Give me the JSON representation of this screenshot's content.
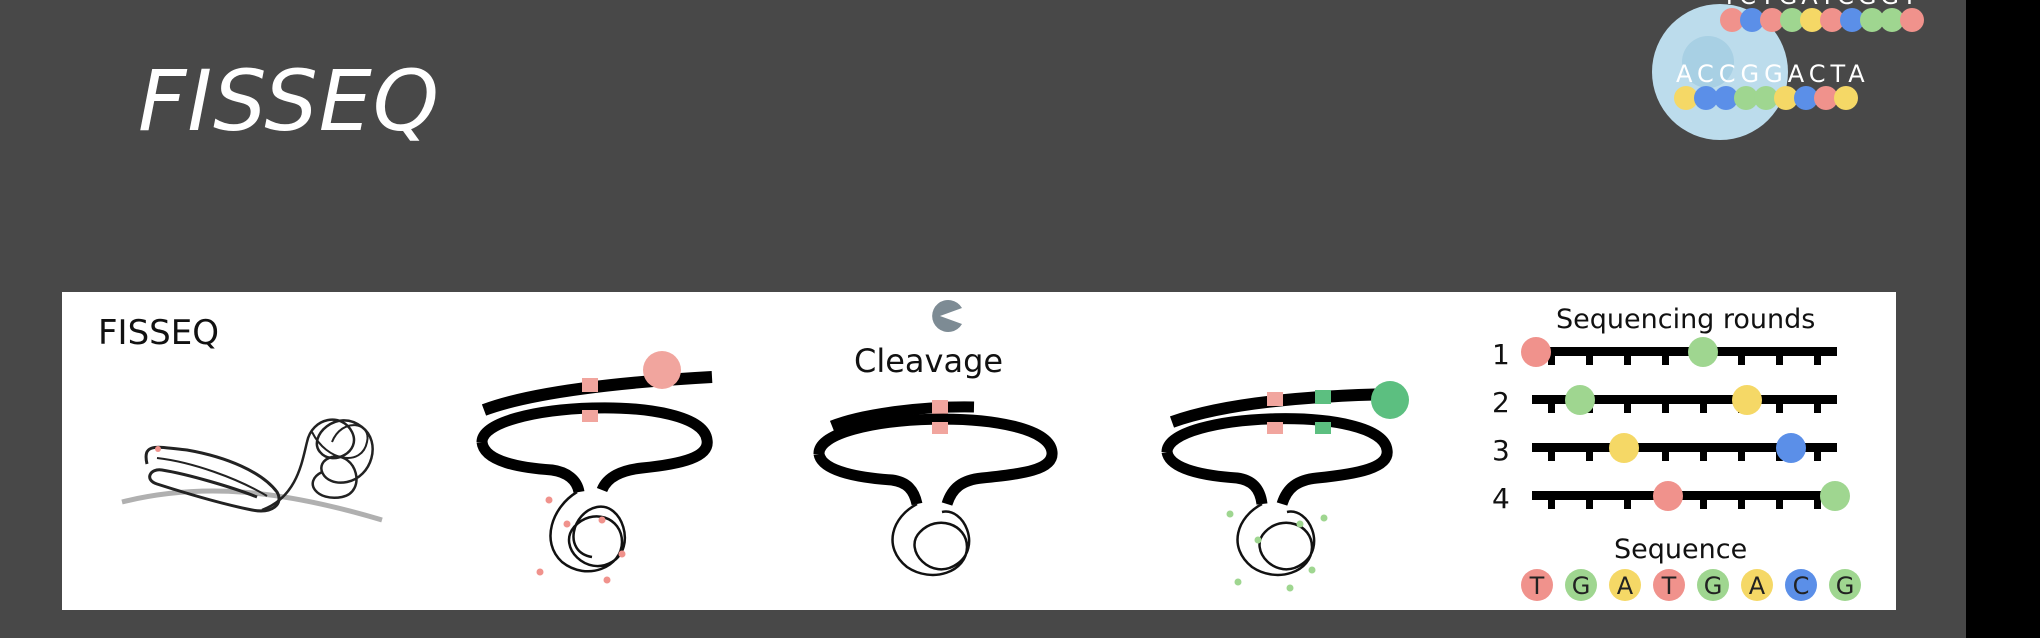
{
  "slide": {
    "title": "FISSEQ"
  },
  "logo": {
    "top_sequence": "TCTGATCGGT",
    "bottom_sequence": "ACCGGACTA"
  },
  "panel": {
    "label": "FISSEQ",
    "cleavage_label": "Cleavage",
    "sequencing_rounds_label": "Sequencing rounds",
    "round_labels": [
      "1",
      "2",
      "3",
      "4"
    ],
    "sequence_label": "Sequence",
    "sequence": [
      "T",
      "G",
      "A",
      "T",
      "G",
      "A",
      "C",
      "G"
    ]
  },
  "colors": {
    "T": "#f0928c",
    "G": "#9fd690",
    "A": "#f5d866",
    "C": "#5b8fe8",
    "background": "#484848",
    "bead_pink": "#f1a59e",
    "bead_green": "#5cbf80",
    "pacman": "#7d8b94"
  }
}
